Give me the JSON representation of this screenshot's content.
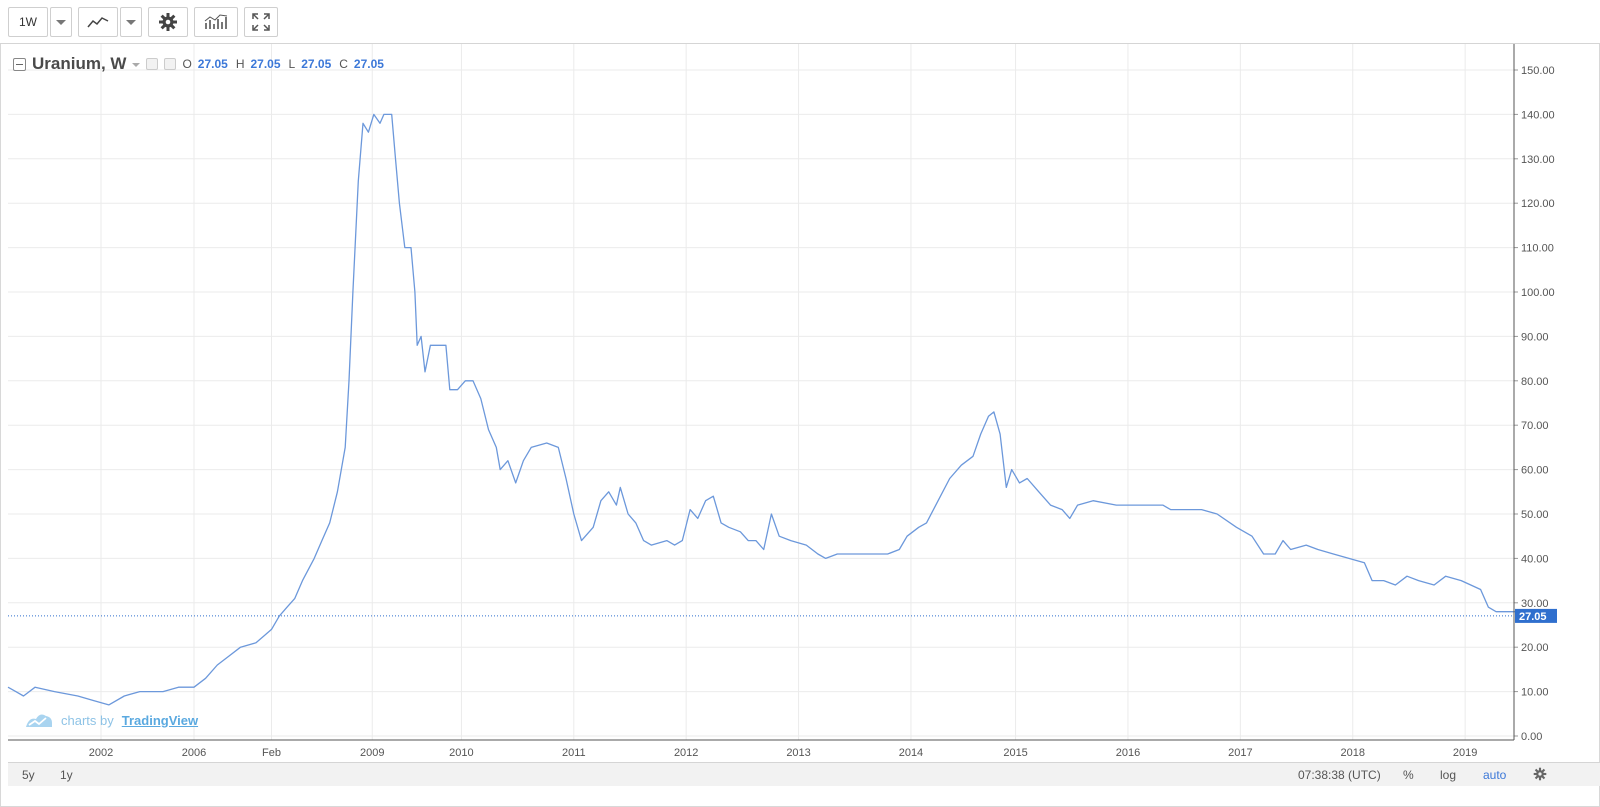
{
  "toolbar": {
    "interval": "1W",
    "chart_style_icon": "line-chart-icon",
    "settings_icon": "gear-icon",
    "indicators_icon": "indicators-icon",
    "fullscreen_icon": "fullscreen-icon"
  },
  "legend": {
    "title": "Uranium, W",
    "o_label": "O",
    "o_value": "27.05",
    "h_label": "H",
    "h_value": "27.05",
    "l_label": "L",
    "l_value": "27.05",
    "c_label": "C",
    "c_value": "27.05"
  },
  "watermark": {
    "prefix": "charts by",
    "brand": "TradingView"
  },
  "bottombar": {
    "range_5y": "5y",
    "range_1y": "1y",
    "time": "07:38:38 (UTC)",
    "percent": "%",
    "log": "log",
    "auto": "auto"
  },
  "colors": {
    "line": "#6c98db",
    "price_label_bg": "#2f6fce",
    "grid": "#ebebeb",
    "axis_text": "#555555"
  },
  "chart_data": {
    "type": "line",
    "title": "Uranium, W",
    "ylim": [
      0,
      155
    ],
    "xlim": [
      2000.0,
      2019.25
    ],
    "y_ticks": [
      "0.00",
      "10.00",
      "20.00",
      "30.00",
      "40.00",
      "50.00",
      "60.00",
      "70.00",
      "80.00",
      "90.00",
      "100.00",
      "110.00",
      "120.00",
      "130.00",
      "140.00",
      "150.00"
    ],
    "x_ticks": [
      {
        "label": "2002",
        "x": 2001.2
      },
      {
        "label": "2006",
        "x": 2002.4
      },
      {
        "label": "Feb",
        "x": 2003.4
      },
      {
        "label": "2009",
        "x": 2004.7
      },
      {
        "label": "2010",
        "x": 2005.85
      },
      {
        "label": "2011",
        "x": 2007.3
      },
      {
        "label": "2012",
        "x": 2008.75
      },
      {
        "label": "2013",
        "x": 2010.2
      },
      {
        "label": "2014",
        "x": 2011.65
      },
      {
        "label": "2015",
        "x": 2013.0
      },
      {
        "label": "2016",
        "x": 2014.45
      },
      {
        "label": "2017",
        "x": 2015.9
      },
      {
        "label": "2018",
        "x": 2017.35
      },
      {
        "label": "2019",
        "x": 2018.8
      }
    ],
    "last_value": 27.05,
    "last_value_label": "27.05",
    "series": [
      {
        "values": [
          [
            2000.0,
            11
          ],
          [
            2000.1,
            10
          ],
          [
            2000.2,
            9
          ],
          [
            2000.35,
            11
          ],
          [
            2000.6,
            10
          ],
          [
            2000.9,
            9
          ],
          [
            2001.1,
            8
          ],
          [
            2001.3,
            7
          ],
          [
            2001.5,
            9
          ],
          [
            2001.7,
            10
          ],
          [
            2002.0,
            10
          ],
          [
            2002.2,
            11
          ],
          [
            2002.4,
            11
          ],
          [
            2002.55,
            13
          ],
          [
            2002.7,
            16
          ],
          [
            2002.85,
            18
          ],
          [
            2003.0,
            20
          ],
          [
            2003.2,
            21
          ],
          [
            2003.4,
            24
          ],
          [
            2003.5,
            27
          ],
          [
            2003.6,
            29
          ],
          [
            2003.7,
            31
          ],
          [
            2003.8,
            35
          ],
          [
            2003.95,
            40
          ],
          [
            2004.05,
            44
          ],
          [
            2004.15,
            48
          ],
          [
            2004.25,
            55
          ],
          [
            2004.35,
            65
          ],
          [
            2004.4,
            80
          ],
          [
            2004.45,
            100
          ],
          [
            2004.52,
            125
          ],
          [
            2004.58,
            138
          ],
          [
            2004.65,
            136
          ],
          [
            2004.72,
            140
          ],
          [
            2004.8,
            138
          ],
          [
            2004.85,
            140
          ],
          [
            2004.95,
            140
          ],
          [
            2005.0,
            130
          ],
          [
            2005.05,
            120
          ],
          [
            2005.12,
            110
          ],
          [
            2005.2,
            110
          ],
          [
            2005.25,
            100
          ],
          [
            2005.28,
            88
          ],
          [
            2005.33,
            90
          ],
          [
            2005.38,
            82
          ],
          [
            2005.45,
            88
          ],
          [
            2005.55,
            88
          ],
          [
            2005.65,
            88
          ],
          [
            2005.7,
            78
          ],
          [
            2005.8,
            78
          ],
          [
            2005.9,
            80
          ],
          [
            2006.0,
            80
          ],
          [
            2006.1,
            76
          ],
          [
            2006.2,
            69
          ],
          [
            2006.3,
            65
          ],
          [
            2006.35,
            60
          ],
          [
            2006.45,
            62
          ],
          [
            2006.55,
            57
          ],
          [
            2006.65,
            62
          ],
          [
            2006.75,
            65
          ],
          [
            2006.95,
            66
          ],
          [
            2007.1,
            65
          ],
          [
            2007.2,
            58
          ],
          [
            2007.3,
            50
          ],
          [
            2007.4,
            44
          ],
          [
            2007.55,
            47
          ],
          [
            2007.65,
            53
          ],
          [
            2007.75,
            55
          ],
          [
            2007.85,
            52
          ],
          [
            2007.9,
            56
          ],
          [
            2008.0,
            50
          ],
          [
            2008.1,
            48
          ],
          [
            2008.2,
            44
          ],
          [
            2008.3,
            43
          ],
          [
            2008.5,
            44
          ],
          [
            2008.6,
            43
          ],
          [
            2008.7,
            44
          ],
          [
            2008.8,
            51
          ],
          [
            2008.9,
            49
          ],
          [
            2009.0,
            53
          ],
          [
            2009.1,
            54
          ],
          [
            2009.2,
            48
          ],
          [
            2009.3,
            47
          ],
          [
            2009.45,
            46
          ],
          [
            2009.55,
            44
          ],
          [
            2009.65,
            44
          ],
          [
            2009.75,
            42
          ],
          [
            2009.85,
            50
          ],
          [
            2009.95,
            45
          ],
          [
            2010.1,
            44
          ],
          [
            2010.3,
            43
          ],
          [
            2010.45,
            41
          ],
          [
            2010.55,
            40
          ],
          [
            2010.7,
            41
          ],
          [
            2010.95,
            41
          ],
          [
            2011.15,
            41
          ],
          [
            2011.35,
            41
          ],
          [
            2011.5,
            42
          ],
          [
            2011.6,
            45
          ],
          [
            2011.75,
            47
          ],
          [
            2011.85,
            48
          ],
          [
            2012.0,
            53
          ],
          [
            2012.15,
            58
          ],
          [
            2012.3,
            61
          ],
          [
            2012.45,
            63
          ],
          [
            2012.55,
            68
          ],
          [
            2012.65,
            72
          ],
          [
            2012.72,
            73
          ],
          [
            2012.8,
            68
          ],
          [
            2012.88,
            56
          ],
          [
            2012.95,
            60
          ],
          [
            2013.05,
            57
          ],
          [
            2013.15,
            58
          ],
          [
            2013.3,
            55
          ],
          [
            2013.45,
            52
          ],
          [
            2013.6,
            51
          ],
          [
            2013.7,
            49
          ],
          [
            2013.8,
            52
          ],
          [
            2014.0,
            53
          ],
          [
            2014.3,
            52
          ],
          [
            2014.6,
            52
          ],
          [
            2014.9,
            52
          ],
          [
            2015.0,
            51
          ],
          [
            2015.2,
            51
          ],
          [
            2015.4,
            51
          ],
          [
            2015.6,
            50
          ],
          [
            2015.85,
            47
          ],
          [
            2016.05,
            45
          ],
          [
            2016.2,
            41
          ],
          [
            2016.35,
            41
          ],
          [
            2016.45,
            44
          ],
          [
            2016.55,
            42
          ],
          [
            2016.75,
            43
          ],
          [
            2016.9,
            42
          ],
          [
            2017.1,
            41
          ],
          [
            2017.3,
            40
          ],
          [
            2017.5,
            39
          ],
          [
            2017.6,
            35
          ],
          [
            2017.75,
            35
          ],
          [
            2017.9,
            34
          ],
          [
            2018.05,
            36
          ],
          [
            2018.2,
            35
          ],
          [
            2018.4,
            34
          ],
          [
            2018.55,
            36
          ],
          [
            2018.75,
            35
          ],
          [
            2019.0,
            33
          ],
          [
            2019.1,
            29
          ],
          [
            2019.2,
            28
          ],
          [
            2019.35,
            28
          ],
          [
            2019.5,
            28
          ]
        ]
      }
    ]
  }
}
